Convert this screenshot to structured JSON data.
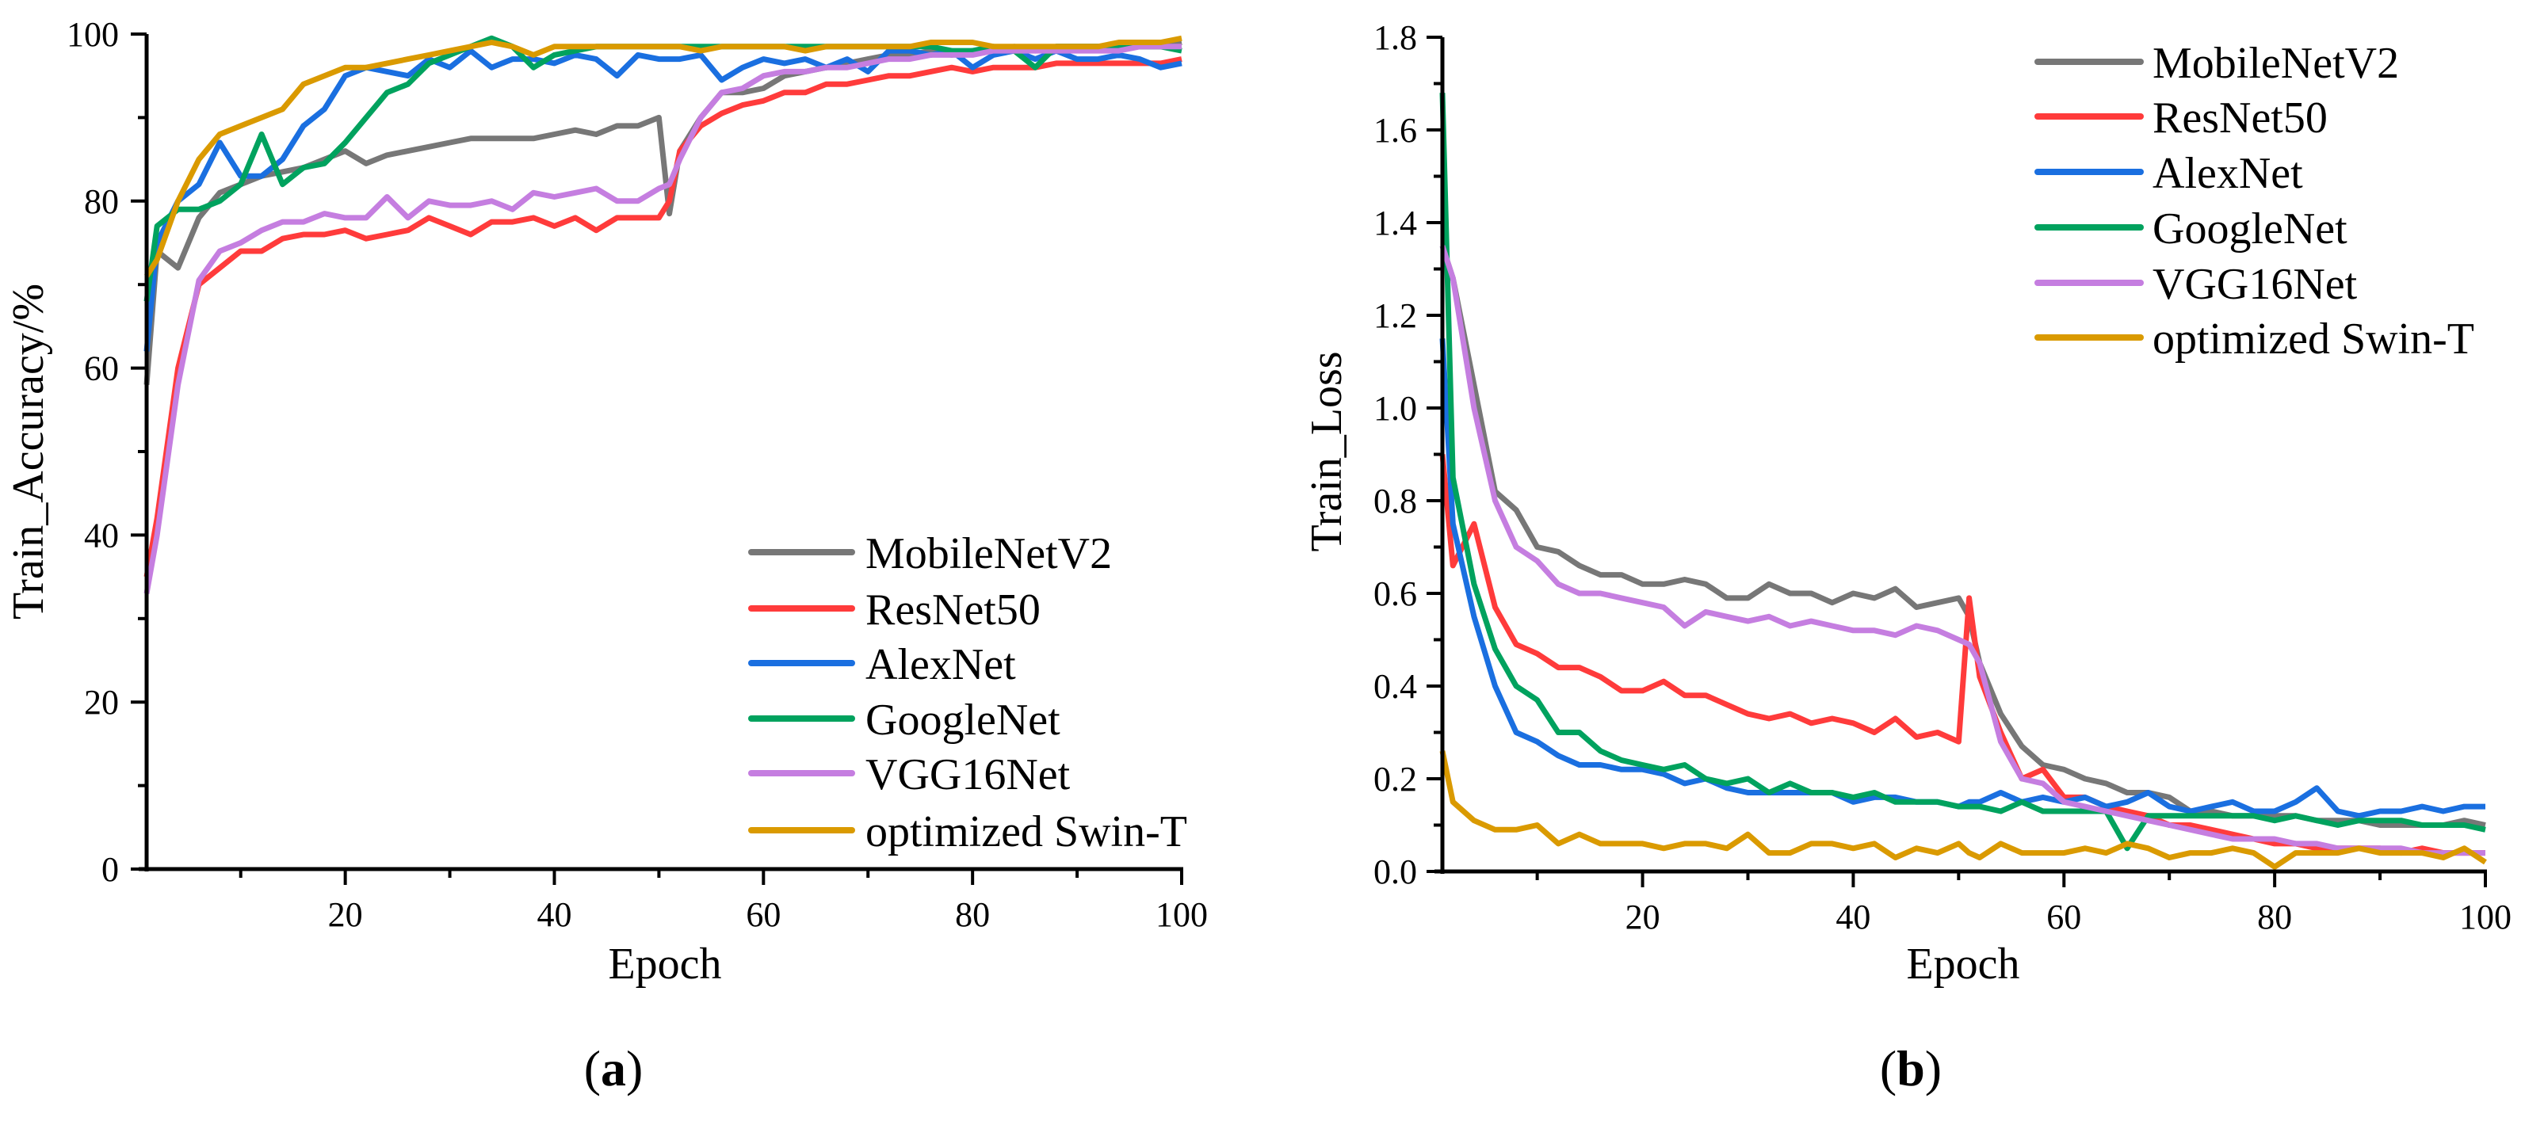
{
  "colors": {
    "MobileNetV2": "#777777",
    "ResNet50": "#ff3b3b",
    "AlexNet": "#1a6fe0",
    "GoogleNet": "#00a25e",
    "VGG16Net": "#c57ee0",
    "optimized Swin-T": "#da9a00"
  },
  "chart_data": [
    {
      "type": "line",
      "caption_open": "(",
      "caption_letter": "a",
      "caption_close": ")",
      "xlabel": "Epoch",
      "ylabel": "Train_Accuracy/%",
      "xlim": [
        1,
        100
      ],
      "ylim": [
        0,
        100
      ],
      "xticks": [
        20,
        40,
        60,
        80,
        100
      ],
      "yticks": [
        0,
        20,
        40,
        60,
        80,
        100
      ],
      "ytick_labels": [
        "0",
        "20",
        "40",
        "60",
        "80",
        "100"
      ],
      "grid": false,
      "legend_position": "bottom-right",
      "x": [
        1,
        2,
        4,
        6,
        8,
        10,
        12,
        14,
        16,
        18,
        20,
        22,
        24,
        26,
        28,
        30,
        32,
        34,
        36,
        38,
        40,
        42,
        44,
        46,
        48,
        50,
        51,
        52,
        54,
        56,
        58,
        60,
        62,
        64,
        66,
        68,
        70,
        72,
        74,
        76,
        78,
        80,
        82,
        84,
        86,
        88,
        90,
        92,
        94,
        96,
        98,
        100
      ],
      "series": [
        {
          "name": "MobileNetV2",
          "values": [
            58,
            74,
            72,
            78,
            81,
            82,
            83,
            83.5,
            84,
            85,
            86,
            84.5,
            85.5,
            86,
            86.5,
            87,
            87.5,
            87.5,
            87.5,
            87.5,
            88,
            88.5,
            88,
            89,
            89,
            90,
            78.5,
            86,
            90,
            93,
            93,
            93.5,
            95,
            95.5,
            96,
            96.5,
            97,
            97.5,
            97.5,
            98,
            97.5,
            98,
            98,
            98.5,
            98,
            98.5,
            98.5,
            98.5,
            98.5,
            98.5,
            98.5,
            99
          ]
        },
        {
          "name": "ResNet50",
          "values": [
            35,
            42,
            60,
            70,
            72,
            74,
            74,
            75.5,
            76,
            76,
            76.5,
            75.5,
            76,
            76.5,
            78,
            77,
            76,
            77.5,
            77.5,
            78,
            77,
            78,
            76.5,
            78,
            78,
            78,
            80,
            86,
            89,
            90.5,
            91.5,
            92,
            93,
            93,
            94,
            94,
            94.5,
            95,
            95,
            95.5,
            96,
            95.5,
            96,
            96,
            96,
            96.5,
            96.5,
            96.5,
            96.5,
            96.5,
            96.5,
            97
          ]
        },
        {
          "name": "AlexNet",
          "values": [
            62,
            75,
            80,
            82,
            87,
            83,
            83,
            85,
            89,
            91,
            95,
            96,
            95.5,
            95,
            97,
            96,
            98,
            96,
            97,
            97,
            96.5,
            97.5,
            97,
            95,
            97.5,
            97,
            97,
            97,
            97.5,
            94.5,
            96,
            97,
            96.5,
            97,
            96,
            97,
            95.5,
            98,
            98,
            97.5,
            98,
            96,
            97.5,
            98,
            97,
            98,
            97,
            97,
            97.5,
            97,
            96,
            96.5
          ]
        },
        {
          "name": "GoogleNet",
          "values": [
            68,
            77,
            79,
            79,
            80,
            82,
            88,
            82,
            84,
            84.5,
            87,
            90,
            93,
            94,
            96.5,
            97.5,
            98.5,
            99.5,
            98.5,
            96,
            97.5,
            98,
            98.5,
            98.5,
            98.5,
            98.5,
            98.5,
            98.5,
            98.5,
            98.5,
            98.5,
            98.5,
            98.5,
            98.5,
            98.5,
            98.5,
            98.5,
            98.5,
            98.5,
            98.5,
            98,
            98,
            98.5,
            98,
            96,
            98.5,
            98.5,
            98.5,
            98.5,
            98.5,
            98.5,
            98
          ]
        },
        {
          "name": "VGG16Net",
          "values": [
            33,
            40,
            58,
            70.5,
            74,
            75,
            76.5,
            77.5,
            77.5,
            78.5,
            78,
            78,
            80.5,
            78,
            80,
            79.5,
            79.5,
            80,
            79,
            81,
            80.5,
            81,
            81.5,
            80,
            80,
            81.5,
            82,
            85,
            90,
            93,
            93.5,
            95,
            95.5,
            95.5,
            96,
            96,
            96.5,
            97,
            97,
            97.5,
            97.5,
            97.5,
            98,
            98,
            98,
            98,
            98,
            98,
            98,
            98.5,
            98.5,
            98.5
          ]
        },
        {
          "name": "optimized Swin-T",
          "values": [
            71,
            73,
            80,
            85,
            88,
            89,
            90,
            91,
            94,
            95,
            96,
            96,
            96.5,
            97,
            97.5,
            98,
            98.5,
            99,
            98.5,
            97.5,
            98.5,
            98.5,
            98.5,
            98.5,
            98.5,
            98.5,
            98.5,
            98.5,
            98,
            98.5,
            98.5,
            98.5,
            98.5,
            98,
            98.5,
            98.5,
            98.5,
            98.5,
            98.5,
            99,
            99,
            99,
            98.5,
            98.5,
            98.5,
            98.5,
            98.5,
            98.5,
            99,
            99,
            99,
            99.5
          ]
        }
      ]
    },
    {
      "type": "line",
      "caption_open": "(",
      "caption_letter": "b",
      "caption_close": ")",
      "xlabel": "Epoch",
      "ylabel": "Train_Loss",
      "xlim": [
        1,
        100
      ],
      "ylim": [
        0,
        1.8
      ],
      "xticks": [
        20,
        40,
        60,
        80,
        100
      ],
      "yticks": [
        0,
        0.2,
        0.4,
        0.6,
        0.8,
        1.0,
        1.2,
        1.4,
        1.6,
        1.8
      ],
      "ytick_labels": [
        "0.0",
        "0.2",
        "0.4",
        "0.6",
        "0.8",
        "1.0",
        "1.2",
        "1.4",
        "1.6",
        "1.8"
      ],
      "grid": false,
      "legend_position": "top-right",
      "x": [
        1,
        2,
        4,
        6,
        8,
        10,
        12,
        14,
        16,
        18,
        20,
        22,
        24,
        26,
        28,
        30,
        32,
        34,
        36,
        38,
        40,
        42,
        44,
        46,
        48,
        50,
        51,
        52,
        54,
        56,
        58,
        60,
        62,
        64,
        66,
        68,
        70,
        72,
        74,
        76,
        78,
        80,
        82,
        84,
        86,
        88,
        90,
        92,
        94,
        96,
        98,
        100
      ],
      "series": [
        {
          "name": "MobileNetV2",
          "values": [
            1.35,
            1.28,
            1.05,
            0.82,
            0.78,
            0.7,
            0.69,
            0.66,
            0.64,
            0.64,
            0.62,
            0.62,
            0.63,
            0.62,
            0.59,
            0.59,
            0.62,
            0.6,
            0.6,
            0.58,
            0.6,
            0.59,
            0.61,
            0.57,
            0.58,
            0.59,
            0.55,
            0.45,
            0.34,
            0.27,
            0.23,
            0.22,
            0.2,
            0.19,
            0.17,
            0.17,
            0.16,
            0.13,
            0.13,
            0.12,
            0.12,
            0.12,
            0.12,
            0.11,
            0.11,
            0.11,
            0.1,
            0.1,
            0.1,
            0.1,
            0.11,
            0.1
          ]
        },
        {
          "name": "ResNet50",
          "values": [
            0.9,
            0.66,
            0.75,
            0.57,
            0.49,
            0.47,
            0.44,
            0.44,
            0.42,
            0.39,
            0.39,
            0.41,
            0.38,
            0.38,
            0.36,
            0.34,
            0.33,
            0.34,
            0.32,
            0.33,
            0.32,
            0.3,
            0.33,
            0.29,
            0.3,
            0.28,
            0.59,
            0.42,
            0.3,
            0.2,
            0.22,
            0.16,
            0.16,
            0.14,
            0.13,
            0.12,
            0.1,
            0.1,
            0.09,
            0.08,
            0.07,
            0.06,
            0.06,
            0.05,
            0.05,
            0.05,
            0.05,
            0.04,
            0.05,
            0.04,
            0.04,
            0.04
          ]
        },
        {
          "name": "AlexNet",
          "values": [
            1.15,
            0.75,
            0.55,
            0.4,
            0.3,
            0.28,
            0.25,
            0.23,
            0.23,
            0.22,
            0.22,
            0.21,
            0.19,
            0.2,
            0.18,
            0.17,
            0.17,
            0.17,
            0.17,
            0.17,
            0.15,
            0.16,
            0.16,
            0.15,
            0.15,
            0.14,
            0.15,
            0.15,
            0.17,
            0.15,
            0.16,
            0.15,
            0.16,
            0.14,
            0.15,
            0.17,
            0.14,
            0.13,
            0.14,
            0.15,
            0.13,
            0.13,
            0.15,
            0.18,
            0.13,
            0.12,
            0.13,
            0.13,
            0.14,
            0.13,
            0.14,
            0.14
          ]
        },
        {
          "name": "GoogleNet",
          "values": [
            1.68,
            0.85,
            0.62,
            0.48,
            0.4,
            0.37,
            0.3,
            0.3,
            0.26,
            0.24,
            0.23,
            0.22,
            0.23,
            0.2,
            0.19,
            0.2,
            0.17,
            0.19,
            0.17,
            0.17,
            0.16,
            0.17,
            0.15,
            0.15,
            0.15,
            0.14,
            0.14,
            0.14,
            0.13,
            0.15,
            0.13,
            0.13,
            0.13,
            0.13,
            0.05,
            0.12,
            0.12,
            0.12,
            0.12,
            0.12,
            0.12,
            0.11,
            0.12,
            0.11,
            0.1,
            0.11,
            0.11,
            0.11,
            0.1,
            0.1,
            0.1,
            0.09
          ]
        },
        {
          "name": "VGG16Net",
          "values": [
            1.35,
            1.28,
            1.0,
            0.8,
            0.7,
            0.67,
            0.62,
            0.6,
            0.6,
            0.59,
            0.58,
            0.57,
            0.53,
            0.56,
            0.55,
            0.54,
            0.55,
            0.53,
            0.54,
            0.53,
            0.52,
            0.52,
            0.51,
            0.53,
            0.52,
            0.5,
            0.49,
            0.45,
            0.28,
            0.2,
            0.19,
            0.15,
            0.14,
            0.13,
            0.12,
            0.11,
            0.1,
            0.09,
            0.08,
            0.07,
            0.07,
            0.07,
            0.06,
            0.06,
            0.05,
            0.05,
            0.05,
            0.05,
            0.04,
            0.04,
            0.04,
            0.04
          ]
        },
        {
          "name": "optimized Swin-T",
          "values": [
            0.26,
            0.15,
            0.11,
            0.09,
            0.09,
            0.1,
            0.06,
            0.08,
            0.06,
            0.06,
            0.06,
            0.05,
            0.06,
            0.06,
            0.05,
            0.08,
            0.04,
            0.04,
            0.06,
            0.06,
            0.05,
            0.06,
            0.03,
            0.05,
            0.04,
            0.06,
            0.04,
            0.03,
            0.06,
            0.04,
            0.04,
            0.04,
            0.05,
            0.04,
            0.06,
            0.05,
            0.03,
            0.04,
            0.04,
            0.05,
            0.04,
            0.01,
            0.04,
            0.04,
            0.04,
            0.05,
            0.04,
            0.04,
            0.04,
            0.03,
            0.05,
            0.02
          ]
        }
      ]
    }
  ]
}
